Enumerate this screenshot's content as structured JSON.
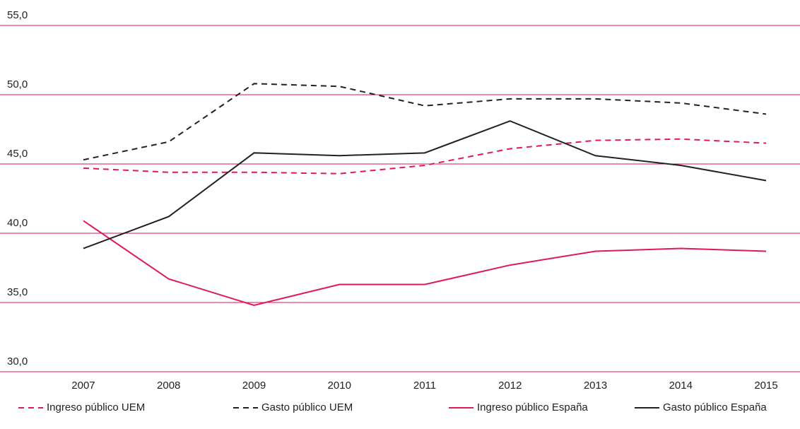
{
  "chart_data": {
    "type": "line",
    "categories": [
      "2007",
      "2008",
      "2009",
      "2010",
      "2011",
      "2012",
      "2013",
      "2014",
      "2015"
    ],
    "series": [
      {
        "name": "Ingreso público UEM",
        "color": "#e0195a",
        "style": "dashed",
        "values": [
          44.7,
          44.4,
          44.4,
          44.3,
          44.9,
          46.1,
          46.7,
          46.8,
          46.5
        ]
      },
      {
        "name": "Gasto público UEM",
        "color": "#222222",
        "style": "dashed",
        "values": [
          45.3,
          46.6,
          50.8,
          50.6,
          49.2,
          49.7,
          49.7,
          49.4,
          48.6
        ]
      },
      {
        "name": "Ingreso público España",
        "color": "#e0195a",
        "style": "solid",
        "values": [
          40.9,
          36.7,
          34.8,
          36.3,
          36.3,
          37.7,
          38.7,
          38.9,
          38.7
        ]
      },
      {
        "name": "Gasto público España",
        "color": "#222222",
        "style": "solid",
        "values": [
          38.9,
          41.2,
          45.8,
          45.6,
          45.8,
          48.1,
          45.6,
          44.9,
          43.8
        ]
      }
    ],
    "ylim": [
      30,
      55
    ],
    "yticks": [
      {
        "value": 30,
        "label": "30,0"
      },
      {
        "value": 35,
        "label": "35,0"
      },
      {
        "value": 40,
        "label": "40,0"
      },
      {
        "value": 45,
        "label": "45,0"
      },
      {
        "value": 50,
        "label": "50,0"
      },
      {
        "value": 55,
        "label": "55,0"
      }
    ],
    "grid": true,
    "grid_color": "#d4145a",
    "legend": "bottom"
  }
}
